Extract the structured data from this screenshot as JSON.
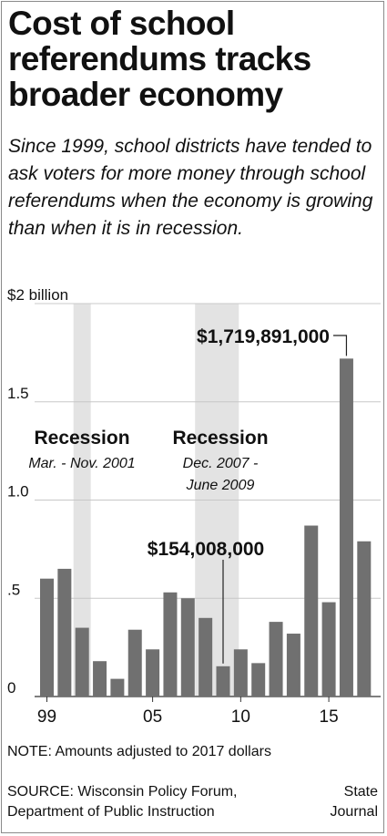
{
  "title": "Cost of school referendums tracks broader economy",
  "subtitle": "Since 1999, school districts have tended to ask voters for more money through school referendums when the economy is growing than when it is in recession.",
  "note": "NOTE: Amounts adjusted to 2017 dollars",
  "source": {
    "line1": "SOURCE:  Wisconsin Policy Forum,",
    "line2": "Department of Public Instruction"
  },
  "publisher": {
    "line1": "State",
    "line2": "Journal"
  },
  "chart_data": {
    "type": "bar",
    "categories": [
      "1999",
      "2000",
      "2001",
      "2002",
      "2003",
      "2004",
      "2005",
      "2006",
      "2007",
      "2008",
      "2009",
      "2010",
      "2011",
      "2012",
      "2013",
      "2014",
      "2015",
      "2016",
      "2017"
    ],
    "series": [
      {
        "values": [
          0.6,
          0.65,
          0.35,
          0.18,
          0.09,
          0.34,
          0.24,
          0.53,
          0.5,
          0.4,
          0.154,
          0.24,
          0.17,
          0.38,
          0.32,
          0.87,
          0.48,
          1.72,
          0.79
        ]
      }
    ],
    "unit": "billion",
    "ylim": [
      0,
      2
    ],
    "y_ticks": [
      {
        "value": 2,
        "label": "$2 billion"
      },
      {
        "value": 1.5,
        "label": "1.5"
      },
      {
        "value": 1.0,
        "label": "1.0"
      },
      {
        "value": 0.5,
        "label": ".5"
      },
      {
        "value": 0,
        "label": "0"
      }
    ],
    "x_ticks": [
      {
        "year": 1999,
        "label": "99"
      },
      {
        "year": 2005,
        "label": "05"
      },
      {
        "year": 2010,
        "label": "10"
      },
      {
        "year": 2015,
        "label": "15"
      }
    ],
    "recessions": [
      {
        "label": "Recession",
        "dates": [
          "Mar. - Nov. 2001"
        ],
        "start_year": 2001,
        "end_year": 2001
      },
      {
        "label": "Recession",
        "dates": [
          "Dec. 2007 -",
          "June 2009"
        ],
        "start_year": 2007.9,
        "end_year": 2009.4
      }
    ],
    "annotations": [
      {
        "text": "$1,719,891,000",
        "year": 2016
      },
      {
        "text": "$154,008,000",
        "year": 2009
      }
    ],
    "grid": true,
    "colors": {
      "bar": "#707070",
      "recession": "#e3e3e3",
      "grid": "#c8c8c8",
      "text": "#111111"
    }
  }
}
